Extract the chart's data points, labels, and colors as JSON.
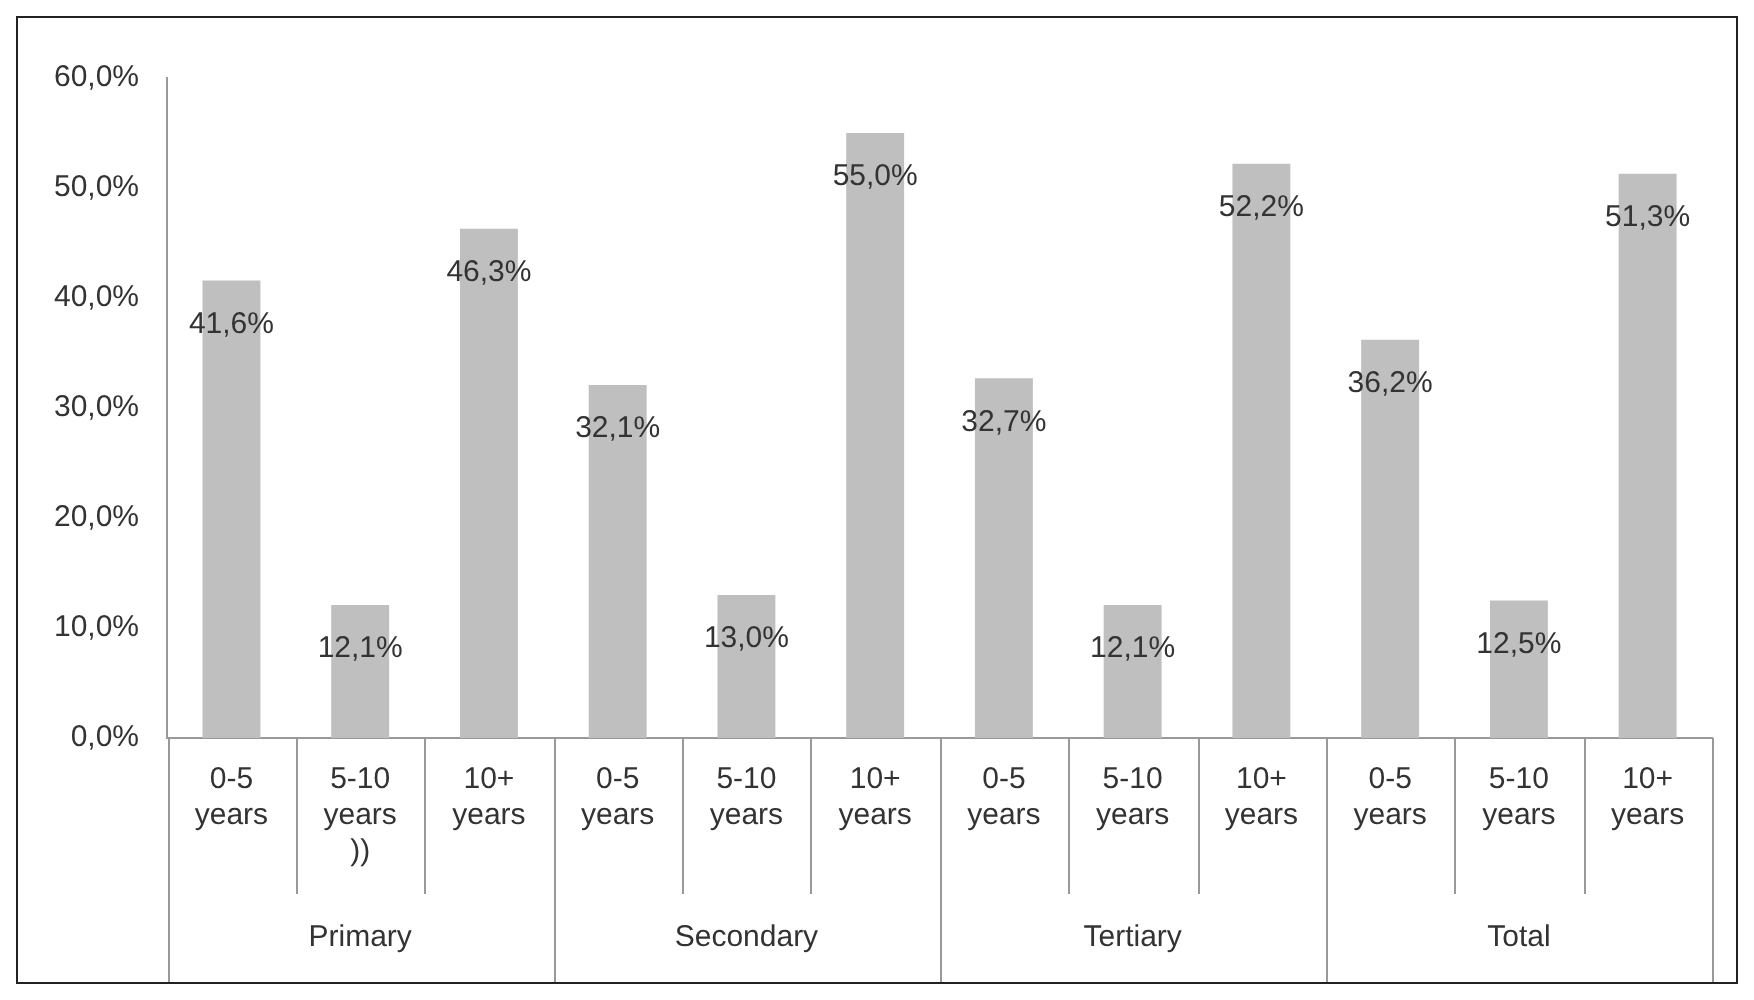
{
  "chart_data": {
    "type": "bar",
    "categories": [
      "0-5 years",
      "5-10 years ))",
      "10+ years",
      "0-5 years",
      "5-10 years",
      "10+ years",
      "0-5 years",
      "5-10 years",
      "10+ years",
      "0-5 years",
      "5-10 years",
      "10+ years"
    ],
    "values": [
      41.6,
      12.1,
      46.3,
      32.1,
      13.0,
      55.0,
      32.7,
      12.1,
      52.2,
      36.2,
      12.5,
      51.3
    ],
    "value_labels": [
      "41,6%",
      "12,1%",
      "46,3%",
      "32,1%",
      "13,0%",
      "55,0%",
      "32,7%",
      "12,1%",
      "52,2%",
      "36,2%",
      "12,5%",
      "51,3%"
    ],
    "color": "#bfbfbf",
    "ylim": [
      0,
      60
    ],
    "yticks": [
      {
        "value": 0,
        "label": "0,0%"
      },
      {
        "value": 10,
        "label": "10,0%"
      },
      {
        "value": 20,
        "label": "20,0%"
      },
      {
        "value": 30,
        "label": "30,0%"
      },
      {
        "value": 40,
        "label": "40,0%"
      },
      {
        "value": 50,
        "label": "50,0%"
      },
      {
        "value": 60,
        "label": "60,0%"
      }
    ],
    "annotations": [
      "Primary",
      "Secondary",
      "Tertiary",
      "Total"
    ],
    "grid": false,
    "legend": false
  }
}
